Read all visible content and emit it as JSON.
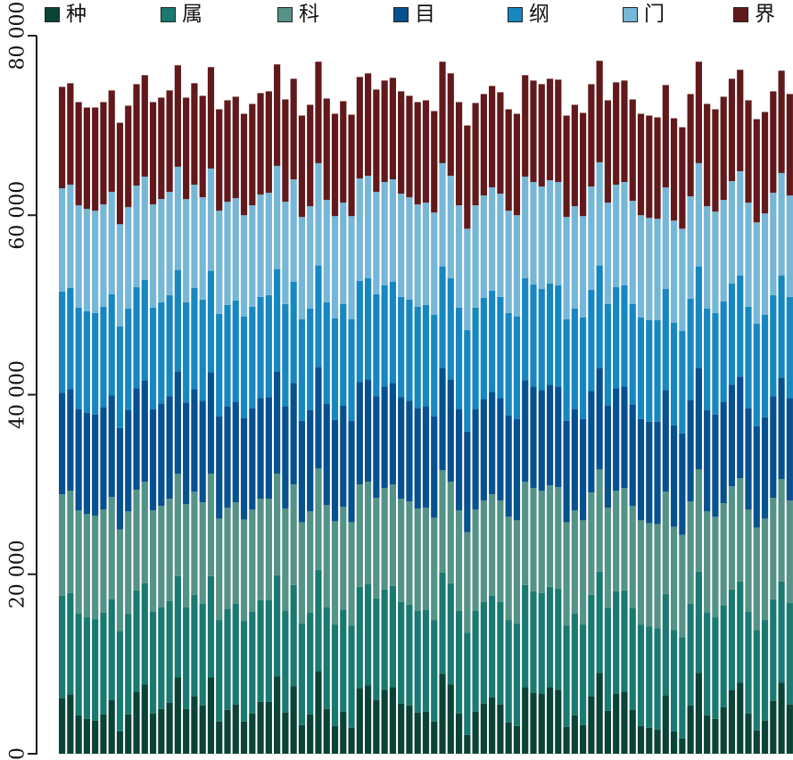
{
  "chart_data": {
    "type": "bar",
    "stacked": true,
    "legend_position": "top",
    "grid": false,
    "ylim": [
      0,
      80000
    ],
    "yticks": [
      0,
      20000,
      40000,
      60000,
      80000
    ],
    "ytick_labels": [
      "0",
      "20 000",
      "40 000",
      "60 000",
      "80 000"
    ],
    "series": [
      {
        "name": "种",
        "color": "#0b4337",
        "values": [
          6200,
          6600,
          4300,
          3900,
          3700,
          4400,
          6000,
          2500,
          4400,
          6900,
          7700,
          4500,
          5000,
          5700,
          8500,
          5000,
          6400,
          5400,
          8500,
          3600,
          4900,
          5500,
          3600,
          4500,
          5800,
          5800,
          8600,
          4600,
          7500,
          3200,
          4400,
          9200,
          5000,
          3100,
          4700,
          2900,
          7300,
          7600,
          6000,
          7100,
          7400,
          5600,
          5400,
          4600,
          4700,
          3600,
          8900,
          7700,
          4500,
          2100,
          4700,
          5600,
          6300,
          5500,
          3500,
          3100,
          7400,
          6800,
          6700,
          7400,
          7100,
          3000,
          4300,
          3200,
          6400,
          9000,
          4800,
          6700,
          6900,
          4900,
          3100,
          2900,
          2700,
          6500,
          2500,
          1700,
          5400,
          9000,
          4300,
          3900,
          5200,
          7100,
          7900,
          4500,
          2600,
          3700,
          5900,
          7900,
          5500
        ]
      },
      {
        "name": "属",
        "color": "#1a7970",
        "values": [
          11400,
          11300,
          11300,
          11300,
          11300,
          11300,
          11200,
          11200,
          11200,
          11300,
          11300,
          11300,
          11300,
          11300,
          11300,
          11300,
          11300,
          11300,
          11300,
          11300,
          11200,
          11200,
          11200,
          11300,
          11300,
          11300,
          11300,
          11300,
          11300,
          11300,
          11300,
          11300,
          11300,
          11300,
          11300,
          11400,
          11300,
          11300,
          11300,
          11200,
          11300,
          11300,
          11200,
          11300,
          11300,
          11300,
          11300,
          11300,
          11400,
          11400,
          11200,
          11300,
          11300,
          11400,
          11400,
          11400,
          11400,
          11300,
          11200,
          11200,
          11300,
          11300,
          11300,
          11200,
          11300,
          11300,
          11400,
          11400,
          11300,
          11300,
          11300,
          11300,
          11300,
          11300,
          11300,
          11300,
          11300,
          11300,
          11400,
          11300,
          11300,
          11200,
          11300,
          11300,
          11200,
          11200,
          11300,
          11300,
          11300
        ]
      },
      {
        "name": "科",
        "color": "#559287",
        "values": [
          11300,
          11400,
          11500,
          11500,
          11500,
          11500,
          11400,
          11300,
          11400,
          11200,
          11300,
          11300,
          11300,
          11400,
          11400,
          11500,
          11500,
          11300,
          11400,
          11300,
          11300,
          11300,
          11300,
          11400,
          11300,
          11300,
          11300,
          11400,
          11200,
          11300,
          11300,
          11300,
          11400,
          11500,
          11500,
          11500,
          11400,
          11400,
          11200,
          11300,
          11300,
          11500,
          11500,
          11400,
          11400,
          11400,
          11400,
          11300,
          11200,
          11200,
          11300,
          11300,
          11300,
          11300,
          11500,
          11500,
          11500,
          11500,
          11400,
          11300,
          11300,
          11500,
          11500,
          11600,
          11400,
          11400,
          11200,
          11200,
          11400,
          11400,
          11600,
          11500,
          11600,
          11400,
          11500,
          11400,
          11400,
          11400,
          11300,
          11200,
          11400,
          11500,
          11500,
          11400,
          11400,
          11300,
          11300,
          11400,
          11400
        ]
      },
      {
        "name": "目",
        "color": "#08518f",
        "values": [
          11300,
          11300,
          11300,
          11300,
          11300,
          11400,
          11300,
          11300,
          11300,
          11300,
          11300,
          11300,
          11400,
          11400,
          11400,
          11300,
          11400,
          11300,
          11300,
          11400,
          11300,
          11200,
          11300,
          11300,
          11200,
          11300,
          11400,
          11400,
          11300,
          11300,
          11300,
          11300,
          11300,
          11300,
          11300,
          11300,
          11400,
          11400,
          11300,
          11300,
          11300,
          11300,
          11200,
          11200,
          11300,
          11300,
          11400,
          11400,
          11300,
          11200,
          11200,
          11300,
          11400,
          11400,
          11300,
          11300,
          11300,
          11300,
          11200,
          11200,
          11200,
          11300,
          11300,
          11300,
          11300,
          11300,
          11400,
          11400,
          11300,
          11300,
          11300,
          11300,
          11400,
          11300,
          11300,
          11300,
          11300,
          11300,
          11300,
          11400,
          11300,
          11300,
          11300,
          11300,
          11300,
          11300,
          11300,
          11300,
          11400
        ]
      },
      {
        "name": "纲",
        "color": "#1787c0",
        "values": [
          11300,
          11300,
          11300,
          11300,
          11300,
          11200,
          11300,
          11300,
          11300,
          11300,
          11200,
          11300,
          11300,
          11300,
          11300,
          11200,
          11300,
          11300,
          11300,
          11400,
          11300,
          11300,
          11300,
          11300,
          11300,
          11400,
          11400,
          11400,
          11300,
          11300,
          11300,
          11300,
          11300,
          11300,
          11300,
          11300,
          11300,
          11300,
          11400,
          11300,
          11300,
          11200,
          11300,
          11300,
          11300,
          11300,
          11300,
          11300,
          11300,
          11300,
          11300,
          11300,
          11300,
          11300,
          11400,
          11400,
          11400,
          11400,
          11300,
          11300,
          11300,
          11300,
          11200,
          11300,
          11300,
          11400,
          11300,
          11300,
          11300,
          11200,
          11300,
          11300,
          11300,
          11300,
          11400,
          11400,
          11300,
          11300,
          11300,
          11300,
          11200,
          11300,
          11300,
          11300,
          11400,
          11400,
          11300,
          11400,
          11300
        ]
      },
      {
        "name": "门",
        "color": "#76b6d6",
        "values": [
          11500,
          11500,
          11400,
          11400,
          11400,
          11400,
          11400,
          11400,
          11300,
          11300,
          11500,
          11500,
          11500,
          11500,
          11500,
          11500,
          11500,
          11400,
          11400,
          11500,
          11500,
          11400,
          11300,
          11300,
          11400,
          11400,
          11500,
          11400,
          11400,
          11400,
          11400,
          11400,
          11400,
          11400,
          11300,
          11500,
          11400,
          11400,
          11400,
          11500,
          11400,
          11500,
          11400,
          11400,
          11400,
          11400,
          11500,
          11400,
          11400,
          11300,
          11400,
          11400,
          11500,
          11500,
          11400,
          11300,
          11300,
          11400,
          11400,
          11500,
          11500,
          11400,
          11400,
          11300,
          11500,
          11500,
          11300,
          11400,
          11500,
          11500,
          11400,
          11400,
          11300,
          11300,
          11400,
          11400,
          11400,
          11500,
          11400,
          11300,
          11300,
          11400,
          11600,
          11600,
          11300,
          11300,
          11400,
          11400,
          11300
        ]
      },
      {
        "name": "界",
        "color": "#61191c",
        "values": [
          11300,
          11300,
          11500,
          11300,
          11500,
          11400,
          11300,
          11300,
          11300,
          11300,
          11300,
          11400,
          11300,
          11300,
          11300,
          11300,
          11300,
          11300,
          11300,
          11300,
          11300,
          11300,
          11300,
          11300,
          11300,
          11300,
          11300,
          11400,
          11200,
          11300,
          11300,
          11300,
          11300,
          11400,
          11300,
          11300,
          11300,
          11400,
          11400,
          11300,
          11300,
          11400,
          11300,
          11400,
          11400,
          11300,
          11300,
          11400,
          11500,
          11500,
          11400,
          11300,
          11300,
          11300,
          11300,
          11300,
          11300,
          11300,
          11400,
          11300,
          11400,
          11300,
          11300,
          11500,
          11400,
          11300,
          11400,
          11400,
          11300,
          11300,
          11300,
          11400,
          11300,
          11400,
          11400,
          11300,
          11400,
          11300,
          11400,
          11400,
          11500,
          11400,
          11300,
          11400,
          11500,
          11300,
          11300,
          11400,
          11300
        ]
      }
    ]
  }
}
